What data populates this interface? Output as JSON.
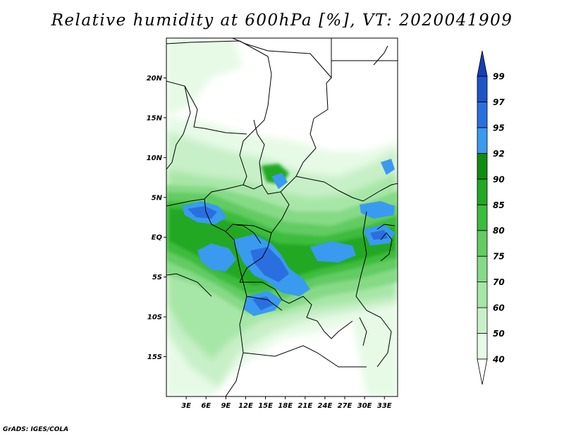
{
  "title": "Relative humidity at 600hPa [%], VT: 2020041909",
  "credit": "GrADS: IGES/COLA",
  "chart_data": {
    "type": "heatmap",
    "variable": "Relative humidity",
    "level": "600hPa",
    "unit": "%",
    "valid_time": "2020041909",
    "lon_range": [
      0,
      35
    ],
    "lat_range": [
      -20,
      25
    ],
    "x_ticks": [
      "3E",
      "6E",
      "9E",
      "12E",
      "15E",
      "18E",
      "21E",
      "24E",
      "27E",
      "30E",
      "33E"
    ],
    "y_ticks": [
      "20N",
      "15N",
      "10N",
      "5N",
      "EQ",
      "5S",
      "10S",
      "15S"
    ],
    "colorbar": {
      "levels": [
        "40",
        "50",
        "60",
        "70",
        "75",
        "80",
        "85",
        "90",
        "92",
        "95",
        "97",
        "99"
      ],
      "colors": [
        "#ffffff",
        "#e6fae6",
        "#c8f0c8",
        "#a6e6a6",
        "#86da86",
        "#62cc62",
        "#3cbc3c",
        "#22a822",
        "#108c10",
        "#3a9aef",
        "#2a6fe0",
        "#1d55c8",
        "#1440b4"
      ]
    }
  }
}
